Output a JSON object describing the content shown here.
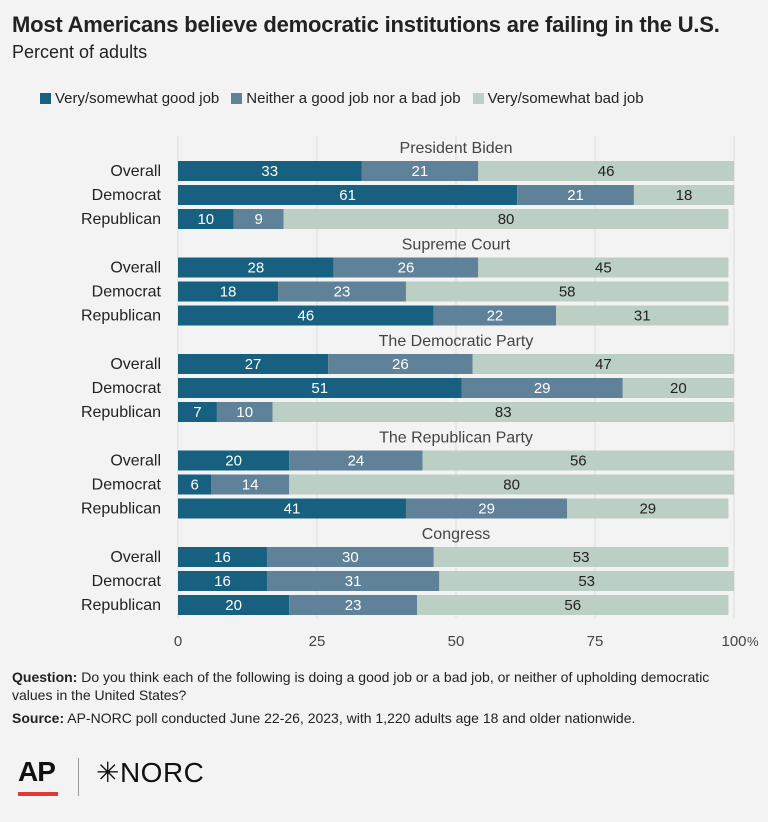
{
  "title": "Most Americans believe democratic institutions are failing in the U.S.",
  "subtitle": "Percent of adults",
  "footer": {
    "question_label": "Question:",
    "question_text": " Do you think each of the following is doing a good job or a bad job, or neither of upholding democratic values in the United States?",
    "source_label": "Source:",
    "source_text": " AP-NORC poll conducted June 22-26, 2023, with 1,220 adults age 18 and older nationwide."
  },
  "logos": {
    "ap": "AP",
    "norc": "✳NORC"
  },
  "colors": {
    "good": "#17607f",
    "neither": "#5f8299",
    "bad": "#bccfc4",
    "text_dark": "#222222",
    "text_light": "#ffffff"
  },
  "chart_data": {
    "type": "bar",
    "orientation": "horizontal",
    "stacked": true,
    "xlim": [
      0,
      100
    ],
    "x_ticks": [
      "0",
      "25",
      "50",
      "75",
      "100"
    ],
    "x_unit": "%",
    "legend_placement": "top",
    "series": [
      {
        "name": "Very/somewhat good job",
        "key": "good"
      },
      {
        "name": "Neither a good job nor a bad job",
        "key": "neither"
      },
      {
        "name": "Very/somewhat bad job",
        "key": "bad"
      }
    ],
    "groups": [
      {
        "title": "President Biden",
        "rows": [
          {
            "label": "Overall",
            "values": [
              33,
              21,
              46
            ]
          },
          {
            "label": "Democrat",
            "values": [
              61,
              21,
              18
            ]
          },
          {
            "label": "Republican",
            "values": [
              10,
              9,
              80
            ]
          }
        ]
      },
      {
        "title": "Supreme Court",
        "rows": [
          {
            "label": "Overall",
            "values": [
              28,
              26,
              45
            ]
          },
          {
            "label": "Democrat",
            "values": [
              18,
              23,
              58
            ]
          },
          {
            "label": "Republican",
            "values": [
              46,
              22,
              31
            ]
          }
        ]
      },
      {
        "title": "The Democratic Party",
        "rows": [
          {
            "label": "Overall",
            "values": [
              27,
              26,
              47
            ]
          },
          {
            "label": "Democrat",
            "values": [
              51,
              29,
              20
            ]
          },
          {
            "label": "Republican",
            "values": [
              7,
              10,
              83
            ]
          }
        ]
      },
      {
        "title": "The Republican Party",
        "rows": [
          {
            "label": "Overall",
            "values": [
              20,
              24,
              56
            ]
          },
          {
            "label": "Democrat",
            "values": [
              6,
              14,
              80
            ]
          },
          {
            "label": "Republican",
            "values": [
              41,
              29,
              29
            ]
          }
        ]
      },
      {
        "title": "Congress",
        "rows": [
          {
            "label": "Overall",
            "values": [
              16,
              30,
              53
            ]
          },
          {
            "label": "Democrat",
            "values": [
              16,
              31,
              53
            ]
          },
          {
            "label": "Republican",
            "values": [
              20,
              23,
              56
            ]
          }
        ]
      }
    ]
  }
}
